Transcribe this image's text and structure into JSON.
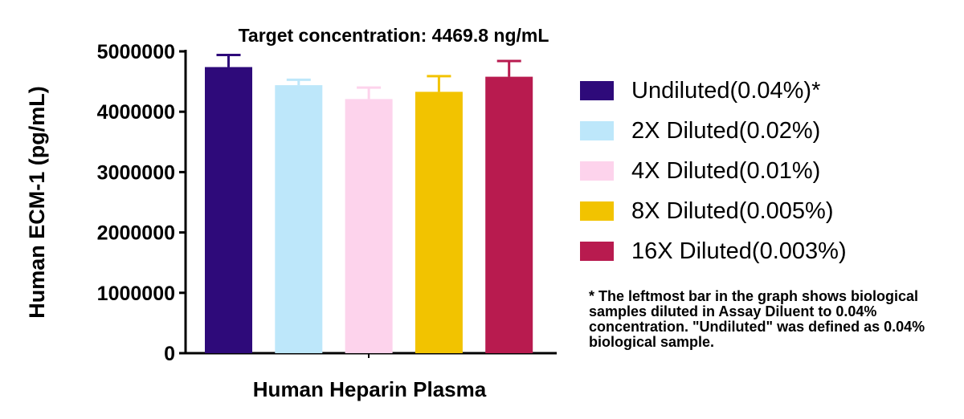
{
  "chart_data": {
    "type": "bar",
    "title": "Target concentration: 4469.8 ng/mL",
    "xlabel": "Human Heparin Plasma",
    "ylabel": "Human ECM-1 (pg/mL)",
    "ylim": [
      0,
      5000000
    ],
    "yticks": [
      "0",
      "1000000",
      "2000000",
      "3000000",
      "4000000",
      "5000000"
    ],
    "ytick_values": [
      0,
      1000000,
      2000000,
      3000000,
      4000000,
      5000000
    ],
    "grid": false,
    "legend_position": "right",
    "series": [
      {
        "name": "Undiluted(0.04%)*",
        "value": 4740000,
        "error": 200000,
        "color": "#2e0a7a"
      },
      {
        "name": "2X Diluted(0.02%)",
        "value": 4440000,
        "error": 90000,
        "color": "#bde7fa"
      },
      {
        "name": "4X Diluted(0.01%)",
        "value": 4210000,
        "error": 190000,
        "color": "#fdd3ec"
      },
      {
        "name": "8X Diluted(0.005%)",
        "value": 4330000,
        "error": 260000,
        "color": "#f2c300"
      },
      {
        "name": "16X Diluted(0.003%)",
        "value": 4580000,
        "error": 260000,
        "color": "#b81b4f"
      }
    ]
  },
  "note": "* The leftmost bar in the graph shows biological samples diluted in Assay Diluent to 0.04% concentration. \"Undiluted\" was defined as 0.04% biological sample."
}
